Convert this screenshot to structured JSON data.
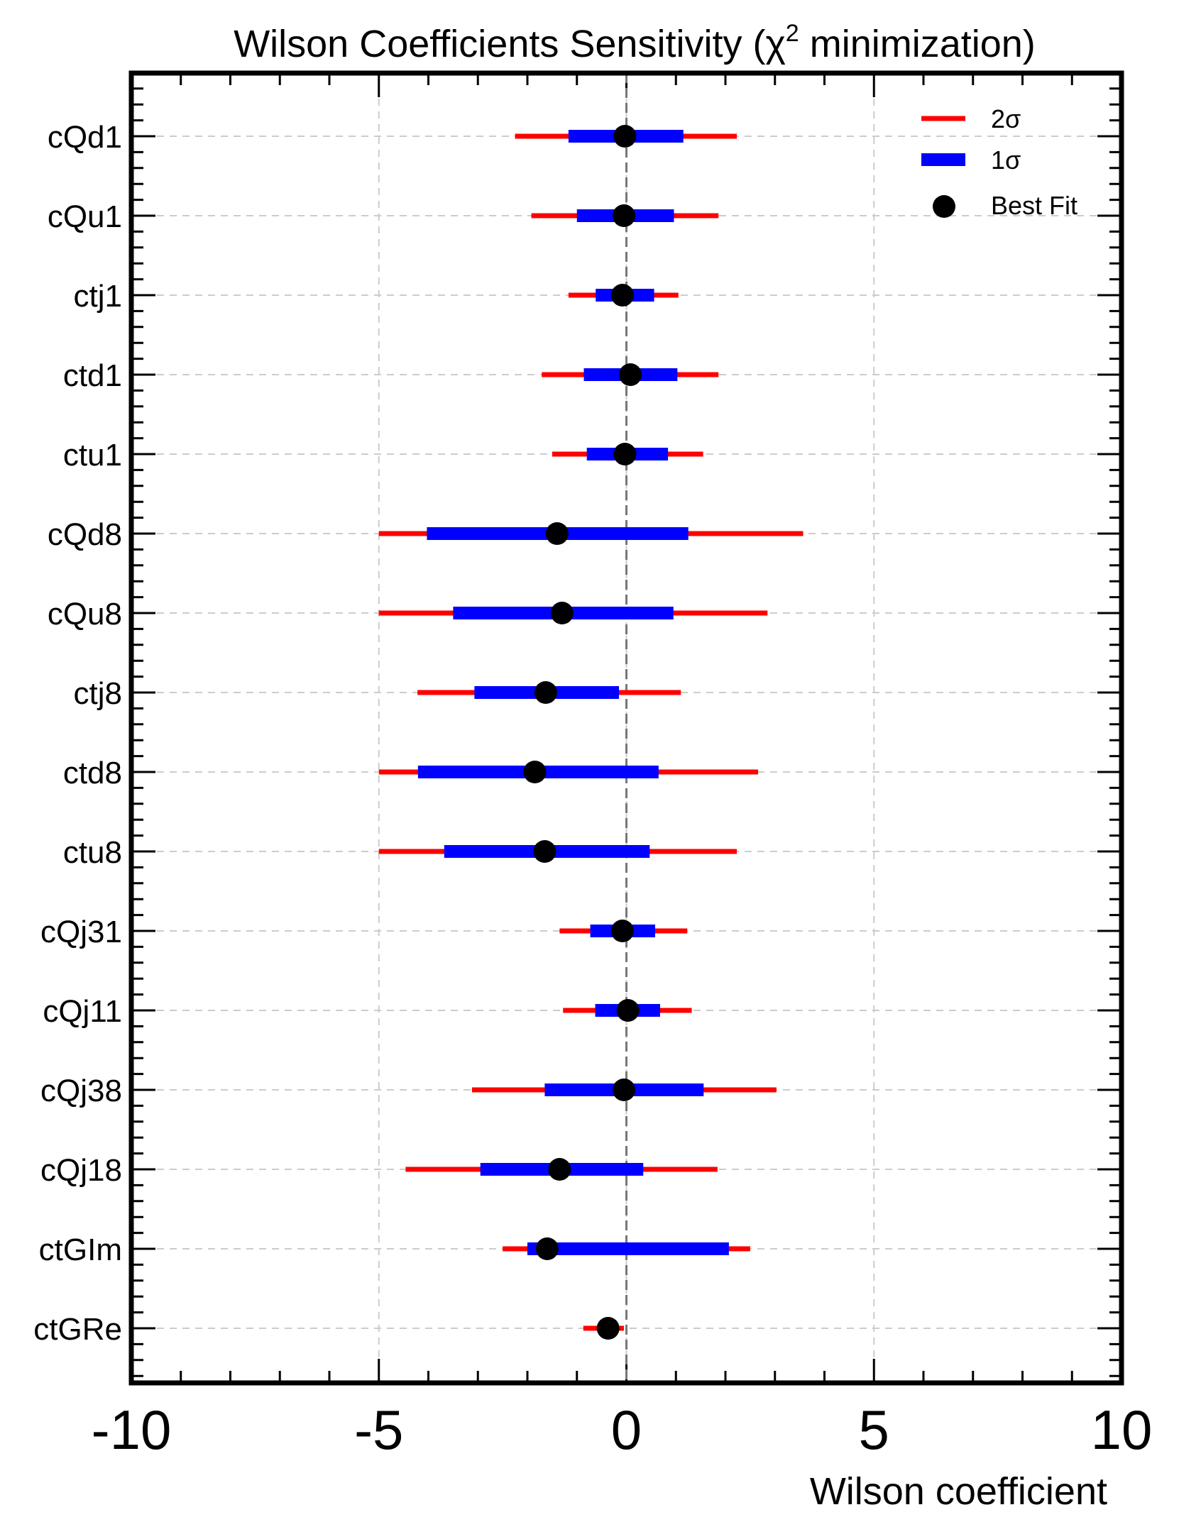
{
  "chart_data": {
    "type": "errorbar",
    "title_main": "Wilson Coefficients Sensitivity (χ",
    "title_sup": "2",
    "title_tail": " minimization)",
    "xlabel": "Wilson coefficient",
    "xlim": [
      -10,
      10
    ],
    "xticks": [
      "-10",
      "-5",
      "0",
      "5",
      "10"
    ],
    "xtick_values": [
      -10,
      -5,
      0,
      5,
      10
    ],
    "grid": true,
    "reference_line_x": 0,
    "legend_position": "top-right",
    "legend": [
      {
        "key": "two_sigma",
        "label": "2σ",
        "color": "#ff0000"
      },
      {
        "key": "one_sigma",
        "label": "1σ",
        "color": "#0000ff"
      },
      {
        "key": "best_fit",
        "label": "Best Fit",
        "color": "#000000"
      }
    ],
    "coefficients": [
      {
        "name": "cQd1",
        "best": -0.03,
        "one_sigma": [
          -1.17,
          1.15
        ],
        "two_sigma": [
          -2.25,
          2.23
        ]
      },
      {
        "name": "cQu1",
        "best": -0.05,
        "one_sigma": [
          -1.0,
          0.96
        ],
        "two_sigma": [
          -1.92,
          1.86
        ]
      },
      {
        "name": "ctj1",
        "best": -0.08,
        "one_sigma": [
          -0.62,
          0.56
        ],
        "two_sigma": [
          -1.17,
          1.05
        ]
      },
      {
        "name": "ctd1",
        "best": 0.08,
        "one_sigma": [
          -0.86,
          1.03
        ],
        "two_sigma": [
          -1.71,
          1.86
        ]
      },
      {
        "name": "ctu1",
        "best": -0.03,
        "one_sigma": [
          -0.8,
          0.84
        ],
        "two_sigma": [
          -1.5,
          1.55
        ]
      },
      {
        "name": "cQd8",
        "best": -1.4,
        "one_sigma": [
          -4.03,
          1.25
        ],
        "two_sigma": [
          -5.0,
          3.57
        ]
      },
      {
        "name": "cQu8",
        "best": -1.3,
        "one_sigma": [
          -3.5,
          0.95
        ],
        "two_sigma": [
          -5.0,
          2.85
        ]
      },
      {
        "name": "ctj8",
        "best": -1.63,
        "one_sigma": [
          -3.07,
          -0.15
        ],
        "two_sigma": [
          -4.22,
          1.1
        ]
      },
      {
        "name": "ctd8",
        "best": -1.85,
        "one_sigma": [
          -4.21,
          0.65
        ],
        "two_sigma": [
          -5.0,
          2.66
        ]
      },
      {
        "name": "ctu8",
        "best": -1.65,
        "one_sigma": [
          -3.68,
          0.47
        ],
        "two_sigma": [
          -5.0,
          2.23
        ]
      },
      {
        "name": "cQj31",
        "best": -0.08,
        "one_sigma": [
          -0.73,
          0.58
        ],
        "two_sigma": [
          -1.35,
          1.23
        ]
      },
      {
        "name": "cQj11",
        "best": 0.03,
        "one_sigma": [
          -0.63,
          0.68
        ],
        "two_sigma": [
          -1.28,
          1.32
        ]
      },
      {
        "name": "cQj38",
        "best": -0.05,
        "one_sigma": [
          -1.65,
          1.56
        ],
        "two_sigma": [
          -3.12,
          3.03
        ]
      },
      {
        "name": "cQj18",
        "best": -1.35,
        "one_sigma": [
          -2.95,
          0.34
        ],
        "two_sigma": [
          -4.46,
          1.84
        ]
      },
      {
        "name": "ctGIm",
        "best": -1.6,
        "one_sigma": [
          -2.0,
          2.07
        ],
        "two_sigma": [
          -2.5,
          2.5
        ]
      },
      {
        "name": "ctGRe",
        "best": -0.37,
        "one_sigma": [
          -0.37,
          -0.37
        ],
        "two_sigma": [
          -0.87,
          -0.05
        ]
      }
    ]
  }
}
